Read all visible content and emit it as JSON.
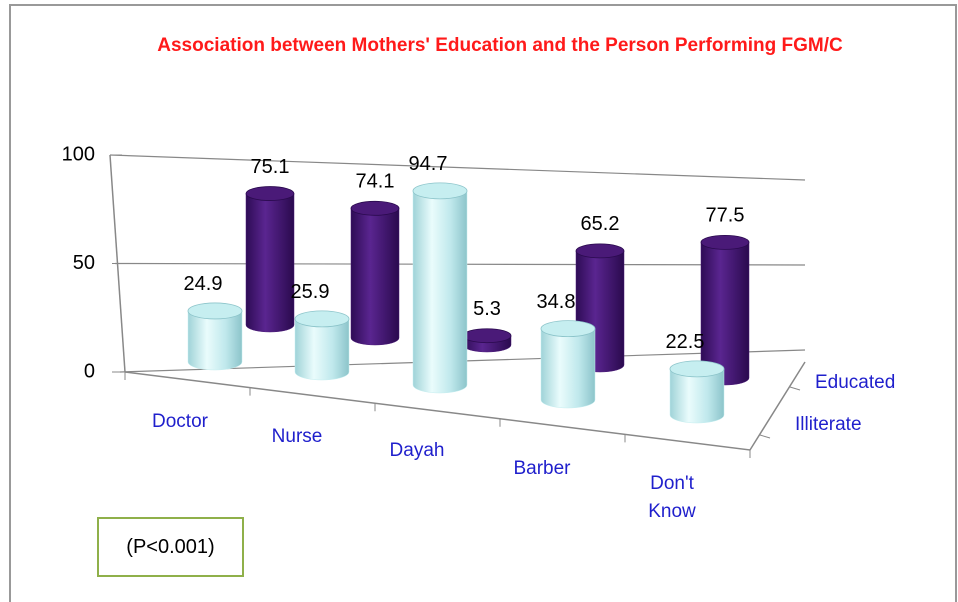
{
  "chart_data": {
    "type": "bar3d",
    "title": "Association between Mothers' Education and the Person Performing FGM/C",
    "categories": [
      "Doctor",
      "Nurse",
      "Dayah",
      "Barber",
      "Don't Know"
    ],
    "series": [
      {
        "name": "Illiterate",
        "color": "#c6eef0",
        "values": [
          24.9,
          25.9,
          94.7,
          34.8,
          22.5
        ]
      },
      {
        "name": "Educated",
        "color": "#4a1a78",
        "values": [
          75.1,
          74.1,
          5.3,
          65.2,
          77.5
        ]
      }
    ],
    "ylim": [
      0,
      100
    ],
    "yticks": [
      0,
      50,
      100
    ],
    "grid": true,
    "annotation": "(P<0.001)"
  }
}
